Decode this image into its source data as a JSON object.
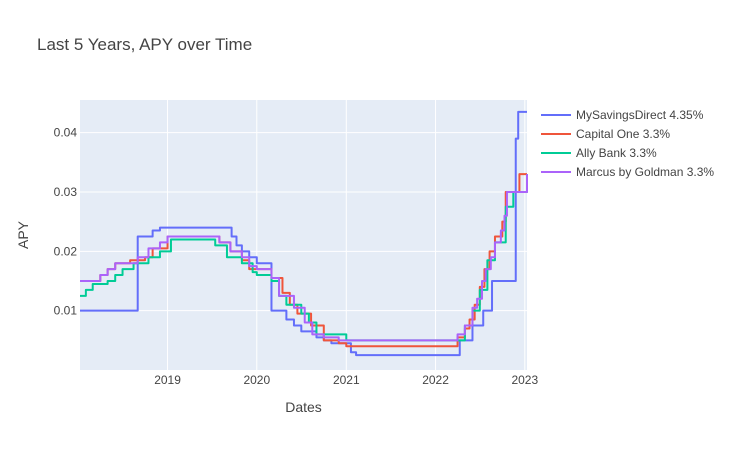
{
  "chart_data": {
    "type": "line",
    "line_shape": "step",
    "title": "Last 5 Years, APY over Time",
    "xlabel": "Dates",
    "ylabel": "APY",
    "x_range": [
      "2018-01-08",
      "2023-01-10"
    ],
    "ylim": [
      0.0,
      0.0455
    ],
    "x_ticks": [
      {
        "date": "2019-01-01",
        "label": "2019"
      },
      {
        "date": "2020-01-01",
        "label": "2020"
      },
      {
        "date": "2021-01-01",
        "label": "2021"
      },
      {
        "date": "2022-01-01",
        "label": "2022"
      },
      {
        "date": "2023-01-01",
        "label": "2023"
      }
    ],
    "y_ticks": [
      {
        "value": 0.01,
        "label": "0.01"
      },
      {
        "value": 0.02,
        "label": "0.02"
      },
      {
        "value": 0.03,
        "label": "0.03"
      },
      {
        "value": 0.04,
        "label": "0.04"
      }
    ],
    "grid": true,
    "legend_position": "top-right-outside",
    "plot_background": "#e5ecf6",
    "series": [
      {
        "name": "MySavingsDirect 4.35%",
        "color": "#636efa",
        "points": [
          [
            "2018-01-08",
            0.01
          ],
          [
            "2018-09-01",
            0.0225
          ],
          [
            "2018-11-01",
            0.0235
          ],
          [
            "2018-12-01",
            0.024
          ],
          [
            "2019-09-20",
            0.0225
          ],
          [
            "2019-10-10",
            0.021
          ],
          [
            "2019-11-01",
            0.02
          ],
          [
            "2019-12-01",
            0.019
          ],
          [
            "2020-01-01",
            0.018
          ],
          [
            "2020-03-01",
            0.01
          ],
          [
            "2020-05-01",
            0.0085
          ],
          [
            "2020-06-01",
            0.0075
          ],
          [
            "2020-07-01",
            0.0065
          ],
          [
            "2020-09-01",
            0.0055
          ],
          [
            "2020-10-01",
            0.005
          ],
          [
            "2020-11-01",
            0.0045
          ],
          [
            "2021-01-20",
            0.003
          ],
          [
            "2021-02-10",
            0.0025
          ],
          [
            "2022-04-10",
            0.005
          ],
          [
            "2022-06-01",
            0.0075
          ],
          [
            "2022-07-15",
            0.01
          ],
          [
            "2022-08-20",
            0.015
          ],
          [
            "2022-11-25",
            0.039
          ],
          [
            "2022-12-05",
            0.0435
          ],
          [
            "2023-01-10",
            0.0435
          ]
        ]
      },
      {
        "name": "Capital One 3.3%",
        "color": "#ef553b",
        "points": [
          [
            "2018-01-08",
            0.015
          ],
          [
            "2018-03-01",
            0.015
          ],
          [
            "2018-04-01",
            0.016
          ],
          [
            "2018-05-01",
            0.017
          ],
          [
            "2018-06-01",
            0.018
          ],
          [
            "2018-08-01",
            0.0185
          ],
          [
            "2018-10-01",
            0.019
          ],
          [
            "2018-11-01",
            0.0205
          ],
          [
            "2019-01-01",
            0.0225
          ],
          [
            "2019-08-01",
            0.0215
          ],
          [
            "2019-09-15",
            0.02
          ],
          [
            "2019-11-01",
            0.0185
          ],
          [
            "2019-12-01",
            0.017
          ],
          [
            "2020-03-01",
            0.0155
          ],
          [
            "2020-04-15",
            0.013
          ],
          [
            "2020-05-15",
            0.011
          ],
          [
            "2020-06-15",
            0.0095
          ],
          [
            "2020-08-10",
            0.0075
          ],
          [
            "2020-10-01",
            0.005
          ],
          [
            "2020-12-01",
            0.0045
          ],
          [
            "2021-01-01",
            0.004
          ],
          [
            "2022-04-01",
            0.0055
          ],
          [
            "2022-05-01",
            0.007
          ],
          [
            "2022-05-20",
            0.0085
          ],
          [
            "2022-06-10",
            0.011
          ],
          [
            "2022-07-01",
            0.014
          ],
          [
            "2022-07-20",
            0.017
          ],
          [
            "2022-08-10",
            0.02
          ],
          [
            "2022-09-01",
            0.0225
          ],
          [
            "2022-10-01",
            0.025
          ],
          [
            "2022-10-15",
            0.03
          ],
          [
            "2022-12-10",
            0.033
          ],
          [
            "2023-01-10",
            0.033
          ]
        ]
      },
      {
        "name": "Ally Bank 3.3%",
        "color": "#00cc96",
        "points": [
          [
            "2018-01-08",
            0.0125
          ],
          [
            "2018-02-01",
            0.0135
          ],
          [
            "2018-03-01",
            0.0145
          ],
          [
            "2018-05-01",
            0.015
          ],
          [
            "2018-06-01",
            0.016
          ],
          [
            "2018-07-01",
            0.017
          ],
          [
            "2018-08-15",
            0.018
          ],
          [
            "2018-10-15",
            0.019
          ],
          [
            "2018-12-01",
            0.02
          ],
          [
            "2019-01-15",
            0.022
          ],
          [
            "2019-07-15",
            0.021
          ],
          [
            "2019-09-01",
            0.019
          ],
          [
            "2019-11-01",
            0.018
          ],
          [
            "2019-12-15",
            0.0165
          ],
          [
            "2020-01-01",
            0.016
          ],
          [
            "2020-03-01",
            0.015
          ],
          [
            "2020-04-01",
            0.0125
          ],
          [
            "2020-05-01",
            0.011
          ],
          [
            "2020-07-01",
            0.0095
          ],
          [
            "2020-08-01",
            0.008
          ],
          [
            "2020-09-01",
            0.006
          ],
          [
            "2021-01-01",
            0.005
          ],
          [
            "2022-04-15",
            0.005
          ],
          [
            "2022-05-01",
            0.0075
          ],
          [
            "2022-06-01",
            0.01
          ],
          [
            "2022-07-01",
            0.0135
          ],
          [
            "2022-08-01",
            0.0185
          ],
          [
            "2022-09-01",
            0.0215
          ],
          [
            "2022-10-15",
            0.0275
          ],
          [
            "2022-11-15",
            0.03
          ],
          [
            "2023-01-10",
            0.033
          ]
        ]
      },
      {
        "name": "Marcus by Goldman 3.3%",
        "color": "#ab63fa",
        "points": [
          [
            "2018-01-08",
            0.015
          ],
          [
            "2018-04-01",
            0.016
          ],
          [
            "2018-05-01",
            0.017
          ],
          [
            "2018-06-01",
            0.018
          ],
          [
            "2018-09-01",
            0.019
          ],
          [
            "2018-10-15",
            0.0205
          ],
          [
            "2018-12-01",
            0.0215
          ],
          [
            "2019-01-01",
            0.0225
          ],
          [
            "2019-08-01",
            0.0215
          ],
          [
            "2019-09-15",
            0.02
          ],
          [
            "2019-11-01",
            0.019
          ],
          [
            "2019-12-01",
            0.0175
          ],
          [
            "2020-01-01",
            0.017
          ],
          [
            "2020-03-01",
            0.0155
          ],
          [
            "2020-04-01",
            0.0125
          ],
          [
            "2020-06-01",
            0.0105
          ],
          [
            "2020-07-15",
            0.008
          ],
          [
            "2020-08-15",
            0.006
          ],
          [
            "2020-10-01",
            0.0055
          ],
          [
            "2020-12-01",
            0.005
          ],
          [
            "2022-04-01",
            0.006
          ],
          [
            "2022-05-01",
            0.0075
          ],
          [
            "2022-06-01",
            0.0105
          ],
          [
            "2022-06-20",
            0.012
          ],
          [
            "2022-07-10",
            0.015
          ],
          [
            "2022-07-25",
            0.017
          ],
          [
            "2022-08-15",
            0.019
          ],
          [
            "2022-09-01",
            0.0215
          ],
          [
            "2022-09-25",
            0.0235
          ],
          [
            "2022-10-10",
            0.026
          ],
          [
            "2022-10-20",
            0.03
          ],
          [
            "2023-01-10",
            0.033
          ]
        ]
      }
    ]
  }
}
